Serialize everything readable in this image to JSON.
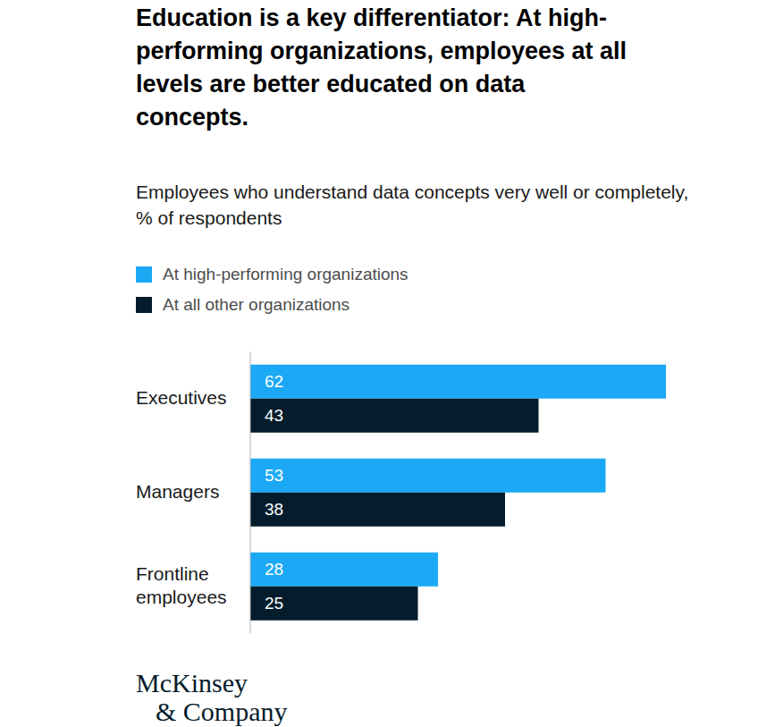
{
  "chart_data": {
    "type": "bar",
    "orientation": "horizontal",
    "title": "Education is a key differentiator: At high-performing organizations, employees at all levels are better educated on data concepts.",
    "subtitle": "Employees who understand data concepts very well or completely, % of respondents",
    "categories": [
      "Executives",
      "Managers",
      "Frontline employees"
    ],
    "series": [
      {
        "name": "At high-performing organizations",
        "color": "#1ba9f5",
        "values": [
          62,
          53,
          28
        ]
      },
      {
        "name": "At all other organizations",
        "color": "#051c2c",
        "values": [
          43,
          38,
          25
        ]
      }
    ],
    "xlim": [
      0,
      62
    ],
    "data_labels": true,
    "tick_labels": "y",
    "legend": "top-left",
    "annotations": [
      "McKinsey",
      "& Company"
    ]
  }
}
